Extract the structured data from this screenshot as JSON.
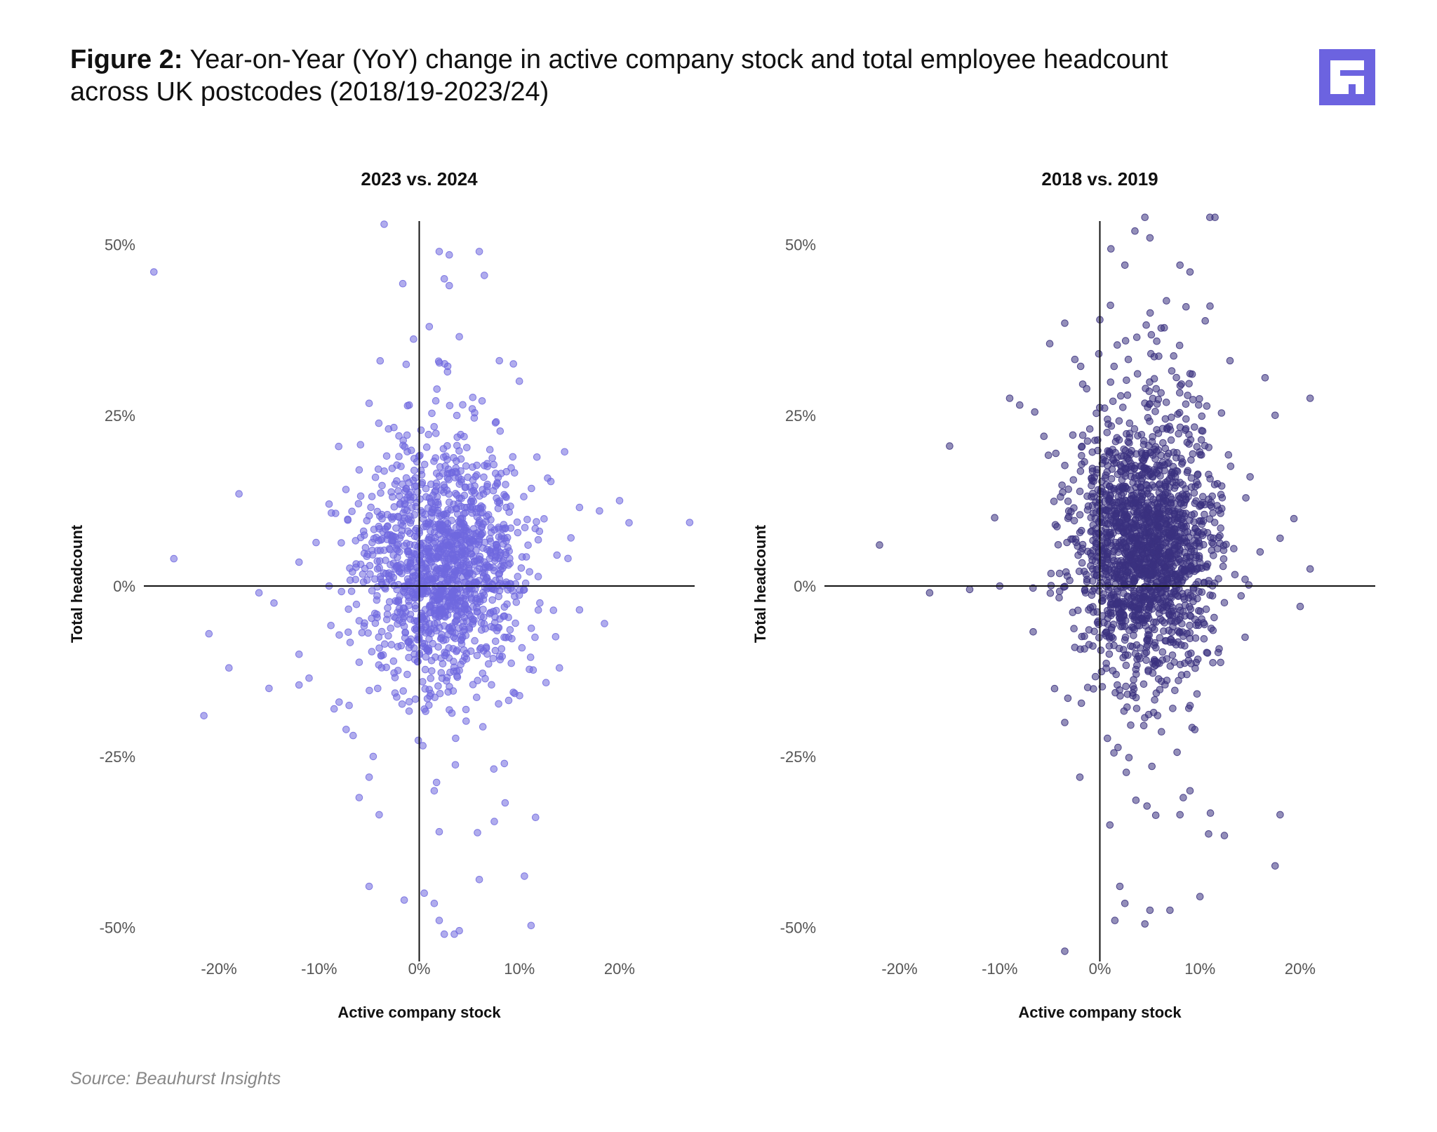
{
  "figure": {
    "label": "Figure 2:",
    "title": "Year-on-Year (YoY) change in active company stock and total employee headcount across UK postcodes (2018/19-2023/24)",
    "source": "Source: Beauhurst Insights",
    "logo_icon": "beauhurst-logo-icon",
    "logo_color": "#6c63e0"
  },
  "chart_data": [
    {
      "type": "scatter",
      "title": "2023 vs. 2024",
      "xlabel": "Active company stock",
      "ylabel": "Total headcount",
      "xlim": [
        -0.275,
        0.275
      ],
      "ylim": [
        -0.55,
        0.55
      ],
      "xticks": [
        -0.2,
        -0.1,
        0,
        0.1,
        0.2
      ],
      "xtick_labels": [
        "-20%",
        "-10%",
        "0%",
        "10%",
        "20%"
      ],
      "yticks": [
        0.5,
        0.25,
        0,
        -0.25,
        -0.5
      ],
      "ytick_labels": [
        "50%",
        "25%",
        "0%",
        "-25%",
        "-50%"
      ],
      "color": "#7068df",
      "generated_cloud": {
        "count": 1400,
        "center": [
          0.025,
          0.03
        ],
        "spread": [
          0.04,
          0.08
        ],
        "seed": 11
      },
      "outliers": [
        {
          "x": -0.265,
          "y": 0.46
        },
        {
          "x": -0.245,
          "y": 0.04
        },
        {
          "x": -0.21,
          "y": -0.07
        },
        {
          "x": -0.215,
          "y": -0.19
        },
        {
          "x": -0.19,
          "y": -0.12
        },
        {
          "x": -0.18,
          "y": 0.135
        },
        {
          "x": -0.16,
          "y": -0.01
        },
        {
          "x": -0.15,
          "y": -0.15
        },
        {
          "x": -0.145,
          "y": -0.025
        },
        {
          "x": -0.12,
          "y": 0.035
        },
        {
          "x": -0.12,
          "y": -0.145
        },
        {
          "x": -0.12,
          "y": -0.1
        },
        {
          "x": -0.11,
          "y": -0.135
        },
        {
          "x": -0.09,
          "y": 0.0
        },
        {
          "x": -0.09,
          "y": 0.12
        },
        {
          "x": -0.085,
          "y": -0.18
        },
        {
          "x": -0.08,
          "y": -0.17
        },
        {
          "x": -0.07,
          "y": -0.175
        },
        {
          "x": -0.06,
          "y": 0.17
        },
        {
          "x": -0.06,
          "y": -0.31
        },
        {
          "x": -0.05,
          "y": -0.28
        },
        {
          "x": -0.05,
          "y": -0.44
        },
        {
          "x": -0.04,
          "y": -0.335
        },
        {
          "x": -0.035,
          "y": 0.53
        },
        {
          "x": -0.015,
          "y": -0.46
        },
        {
          "x": -0.01,
          "y": 0.265
        },
        {
          "x": 0.005,
          "y": -0.45
        },
        {
          "x": 0.01,
          "y": 0.38
        },
        {
          "x": 0.015,
          "y": -0.465
        },
        {
          "x": 0.015,
          "y": -0.3
        },
        {
          "x": 0.02,
          "y": 0.49
        },
        {
          "x": 0.02,
          "y": -0.49
        },
        {
          "x": 0.02,
          "y": -0.36
        },
        {
          "x": 0.025,
          "y": 0.45
        },
        {
          "x": 0.025,
          "y": -0.51
        },
        {
          "x": 0.03,
          "y": 0.44
        },
        {
          "x": 0.03,
          "y": 0.485
        },
        {
          "x": 0.035,
          "y": -0.51
        },
        {
          "x": 0.04,
          "y": -0.505
        },
        {
          "x": 0.06,
          "y": 0.49
        },
        {
          "x": 0.065,
          "y": 0.455
        },
        {
          "x": 0.06,
          "y": -0.43
        },
        {
          "x": 0.075,
          "y": -0.345
        },
        {
          "x": 0.08,
          "y": 0.33
        },
        {
          "x": 0.085,
          "y": -0.26
        },
        {
          "x": 0.1,
          "y": 0.3
        },
        {
          "x": 0.105,
          "y": -0.425
        },
        {
          "x": 0.14,
          "y": -0.12
        },
        {
          "x": 0.16,
          "y": -0.035
        },
        {
          "x": 0.16,
          "y": 0.115
        },
        {
          "x": 0.18,
          "y": 0.11
        },
        {
          "x": 0.185,
          "y": -0.055
        },
        {
          "x": 0.2,
          "y": 0.125
        },
        {
          "x": 0.27,
          "y": 0.093
        }
      ]
    },
    {
      "type": "scatter",
      "title": "2018 vs. 2019",
      "xlabel": "Active company stock",
      "ylabel": "Total headcount",
      "xlim": [
        -0.275,
        0.275
      ],
      "ylim": [
        -0.55,
        0.55
      ],
      "xticks": [
        -0.2,
        -0.1,
        0,
        0.1,
        0.2
      ],
      "xtick_labels": [
        "-20%",
        "-10%",
        "0%",
        "10%",
        "20%"
      ],
      "yticks": [
        0.5,
        0.25,
        0,
        -0.25,
        -0.5
      ],
      "ytick_labels": [
        "50%",
        "25%",
        "0%",
        "-25%",
        "-50%"
      ],
      "color": "#3b317f",
      "generated_cloud": {
        "count": 1800,
        "center": [
          0.045,
          0.055
        ],
        "spread": [
          0.035,
          0.085
        ],
        "seed": 29
      },
      "outliers": [
        {
          "x": -0.22,
          "y": 0.06
        },
        {
          "x": -0.17,
          "y": -0.01
        },
        {
          "x": -0.15,
          "y": 0.205
        },
        {
          "x": -0.13,
          "y": -0.005
        },
        {
          "x": -0.105,
          "y": 0.1
        },
        {
          "x": -0.1,
          "y": 0.0
        },
        {
          "x": -0.09,
          "y": 0.275
        },
        {
          "x": -0.08,
          "y": 0.265
        },
        {
          "x": -0.065,
          "y": 0.255
        },
        {
          "x": -0.05,
          "y": 0.355
        },
        {
          "x": -0.035,
          "y": -0.2
        },
        {
          "x": -0.035,
          "y": 0.385
        },
        {
          "x": -0.035,
          "y": -0.535
        },
        {
          "x": -0.025,
          "y": -0.09
        },
        {
          "x": -0.02,
          "y": -0.28
        },
        {
          "x": -0.01,
          "y": 0.23
        },
        {
          "x": 0.0,
          "y": 0.39
        },
        {
          "x": 0.01,
          "y": -0.35
        },
        {
          "x": 0.015,
          "y": -0.49
        },
        {
          "x": 0.02,
          "y": -0.44
        },
        {
          "x": 0.025,
          "y": -0.465
        },
        {
          "x": 0.025,
          "y": 0.47
        },
        {
          "x": 0.035,
          "y": 0.52
        },
        {
          "x": 0.045,
          "y": 0.54
        },
        {
          "x": 0.045,
          "y": -0.495
        },
        {
          "x": 0.05,
          "y": -0.475
        },
        {
          "x": 0.05,
          "y": 0.51
        },
        {
          "x": 0.07,
          "y": -0.475
        },
        {
          "x": 0.08,
          "y": 0.47
        },
        {
          "x": 0.08,
          "y": -0.335
        },
        {
          "x": 0.09,
          "y": 0.46
        },
        {
          "x": 0.09,
          "y": -0.3
        },
        {
          "x": 0.1,
          "y": -0.455
        },
        {
          "x": 0.11,
          "y": 0.41
        },
        {
          "x": 0.115,
          "y": 0.54
        },
        {
          "x": 0.13,
          "y": 0.33
        },
        {
          "x": 0.145,
          "y": -0.075
        },
        {
          "x": 0.15,
          "y": 0.16
        },
        {
          "x": 0.16,
          "y": 0.05
        },
        {
          "x": 0.165,
          "y": 0.305
        },
        {
          "x": 0.175,
          "y": 0.25
        },
        {
          "x": 0.175,
          "y": -0.41
        },
        {
          "x": 0.18,
          "y": -0.335
        },
        {
          "x": 0.18,
          "y": 0.07
        },
        {
          "x": 0.2,
          "y": -0.03
        },
        {
          "x": 0.21,
          "y": 0.275
        },
        {
          "x": 0.21,
          "y": 0.025
        }
      ]
    }
  ]
}
